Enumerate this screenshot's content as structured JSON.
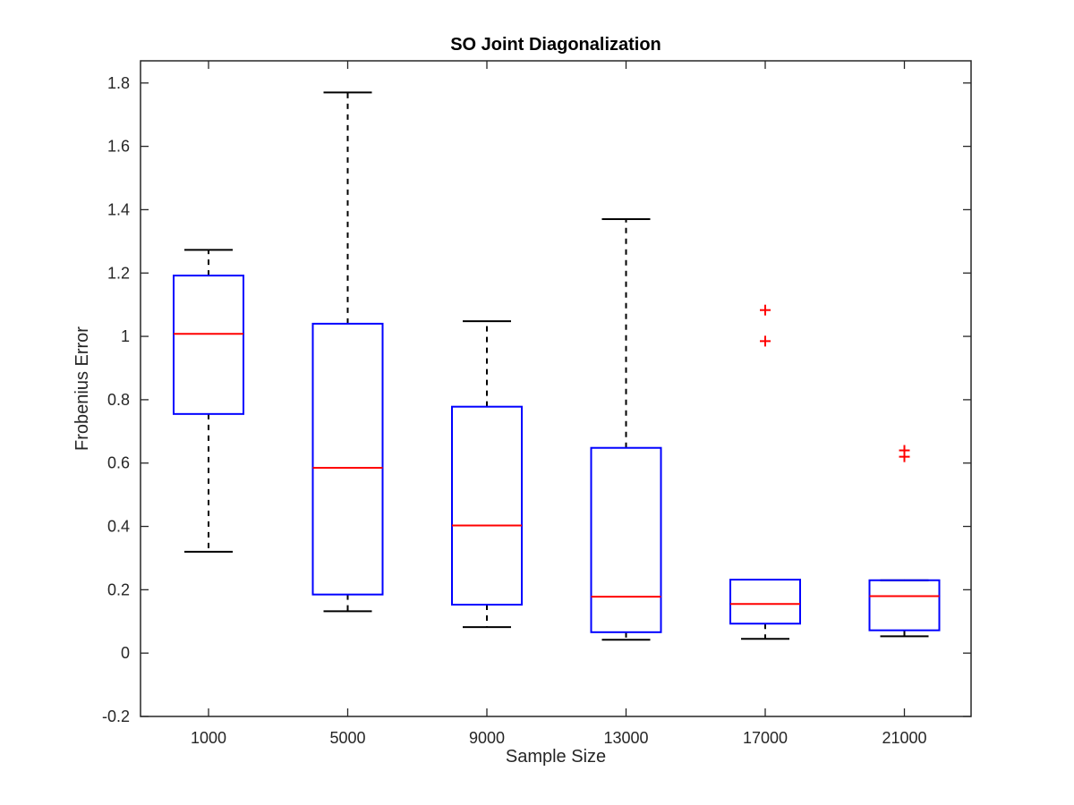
{
  "chart_data": {
    "type": "box",
    "title": "SO Joint Diagonalization",
    "xlabel": "Sample Size",
    "ylabel": "Frobenius Error",
    "ylim": [
      -0.2,
      1.87
    ],
    "yticks": [
      "-0.2",
      "0",
      "0.2",
      "0.4",
      "0.6",
      "0.8",
      "1",
      "1.2",
      "1.4",
      "1.6",
      "1.8"
    ],
    "grid": false,
    "legend": "none",
    "colors": {
      "box": "#0000ff",
      "median": "#ff0000",
      "whisker": "#000000",
      "outlier": "#ff0000"
    },
    "boxes": [
      {
        "category": "1000",
        "whisker_low": 0.32,
        "q1": 0.755,
        "median": 1.008,
        "q3": 1.192,
        "whisker_high": 1.273,
        "outliers": []
      },
      {
        "category": "5000",
        "whisker_low": 0.132,
        "q1": 0.185,
        "median": 0.585,
        "q3": 1.04,
        "whisker_high": 1.77,
        "outliers": []
      },
      {
        "category": "9000",
        "whisker_low": 0.082,
        "q1": 0.153,
        "median": 0.403,
        "q3": 0.778,
        "whisker_high": 1.048,
        "outliers": []
      },
      {
        "category": "13000",
        "whisker_low": 0.042,
        "q1": 0.066,
        "median": 0.178,
        "q3": 0.648,
        "whisker_high": 1.37,
        "outliers": []
      },
      {
        "category": "17000",
        "whisker_low": 0.045,
        "q1": 0.093,
        "median": 0.155,
        "q3": 0.232,
        "whisker_high": 0.232,
        "outliers": [
          0.985,
          1.083
        ]
      },
      {
        "category": "21000",
        "whisker_low": 0.053,
        "q1": 0.072,
        "median": 0.18,
        "q3": 0.23,
        "whisker_high": 0.23,
        "outliers": [
          0.62,
          0.64
        ]
      }
    ]
  }
}
